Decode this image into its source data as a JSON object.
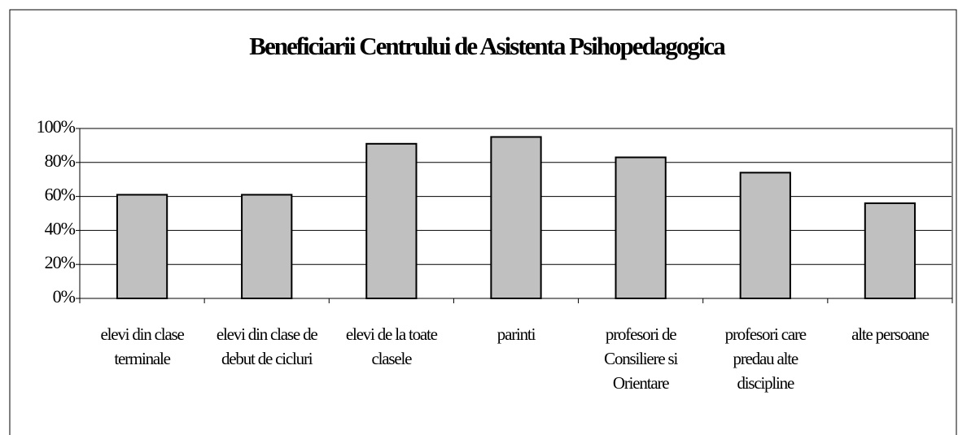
{
  "chart_data": {
    "type": "bar",
    "title": "Beneficiarii Centrului de Asistenta Psihopedagogica",
    "categories": [
      "elevi din clase terminale",
      "elevi din clase de debut de cicluri",
      "elevi de la toate clasele",
      "parinti",
      "profesori de Consiliere si Orientare",
      "profesori care predau alte discipline",
      "alte persoane"
    ],
    "values": [
      61,
      61,
      91,
      95,
      83,
      74,
      56
    ],
    "color": "#c0c0c0",
    "ylim": [
      0,
      100
    ],
    "yticks": [
      {
        "value": 0,
        "label": "0%"
      },
      {
        "value": 20,
        "label": "20%"
      },
      {
        "value": 40,
        "label": "40%"
      },
      {
        "value": 60,
        "label": "60%"
      },
      {
        "value": 80,
        "label": "80%"
      },
      {
        "value": 100,
        "label": "100%"
      }
    ],
    "grid": true
  }
}
